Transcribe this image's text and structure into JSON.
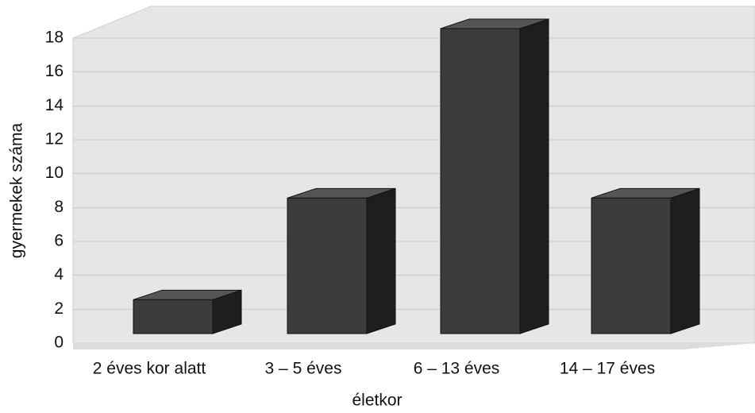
{
  "chart_data": {
    "type": "bar",
    "categories": [
      "2 éves kor alatt",
      "3 – 5 éves",
      "6 – 13 éves",
      "14 – 17 éves"
    ],
    "values": [
      2,
      8,
      18,
      8
    ],
    "color": "#3c3c3c",
    "ylim": [
      0,
      18
    ],
    "yticks": [
      0,
      2,
      4,
      6,
      8,
      10,
      12,
      14,
      16,
      18
    ],
    "y_label": "gyermekek száma",
    "x_label": "életkor",
    "grid": true
  }
}
